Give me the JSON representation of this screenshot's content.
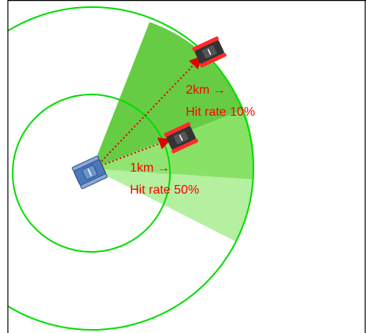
{
  "colors": {
    "ring": "#00dd00",
    "sector_inner": "#66cc44",
    "sector_mid": "#88e266",
    "sector_light": "#b4f0a0",
    "line": "#e00000",
    "text": "#ff0000",
    "friendly_tank": "#4a78b8",
    "enemy_tank": "#333333",
    "enemy_tank_trim": "#ff2a2a"
  },
  "units": {
    "friendly": {
      "icon": "friendly-tank-icon"
    },
    "targets": [
      {
        "icon": "enemy-tank-icon",
        "range": "2km",
        "hit_rate": "10%"
      },
      {
        "icon": "enemy-tank-icon",
        "range": "1km",
        "hit_rate": "50%"
      }
    ]
  },
  "labels": {
    "far_line1": "2km →",
    "far_line2": "Hit rate 10%",
    "near_line1": "1km →",
    "near_line2": "Hit rate 50%"
  }
}
